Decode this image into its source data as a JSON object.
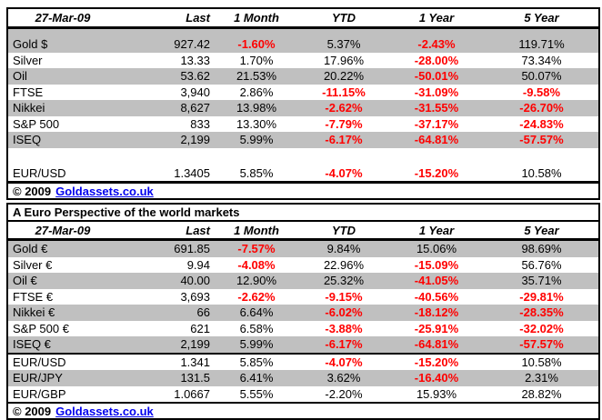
{
  "colors": {
    "negative_red": "#ff0000",
    "stripe_gray": "#c0c0c0",
    "link_blue": "#0000ee"
  },
  "chart_data": [
    {
      "type": "table",
      "columns": [
        "27-Mar-09",
        "Last",
        "1 Month",
        "YTD",
        "1 Year",
        "5 Year"
      ],
      "rows": [
        {
          "cells": [
            "Gold $",
            "927.42",
            "-1.60%",
            "5.37%",
            "-2.43%",
            "119.71%"
          ],
          "red": [
            2,
            4
          ]
        },
        {
          "cells": [
            "Silver",
            "13.33",
            "1.70%",
            "17.96%",
            "-28.00%",
            "73.34%"
          ],
          "red": [
            4
          ]
        },
        {
          "cells": [
            "Oil",
            "53.62",
            "21.53%",
            "20.22%",
            "-50.01%",
            "50.07%"
          ],
          "red": [
            4
          ]
        },
        {
          "cells": [
            "FTSE",
            "3,940",
            "2.86%",
            "-11.15%",
            "-31.09%",
            "-9.58%"
          ],
          "red": [
            3,
            4,
            5
          ]
        },
        {
          "cells": [
            "Nikkei",
            "8,627",
            "13.98%",
            "-2.62%",
            "-31.55%",
            "-26.70%"
          ],
          "red": [
            3,
            4,
            5
          ]
        },
        {
          "cells": [
            "S&P 500",
            "833",
            "13.30%",
            "-7.79%",
            "-37.17%",
            "-24.83%"
          ],
          "red": [
            3,
            4,
            5
          ]
        },
        {
          "cells": [
            "ISEQ",
            "2,199",
            "5.99%",
            "-6.17%",
            "-64.81%",
            "-57.57%"
          ],
          "red": [
            3,
            4,
            5
          ]
        },
        {
          "cells": [
            "EUR/USD",
            "1.3405",
            "5.85%",
            "-4.07%",
            "-15.20%",
            "10.58%"
          ],
          "red": [
            3,
            4
          ]
        }
      ],
      "footer": {
        "copyright": "© 2009",
        "link": "Goldassets.co.uk"
      }
    },
    {
      "type": "table",
      "title": "A Euro Perspective of the world markets",
      "columns": [
        "27-Mar-09",
        "Last",
        "1 Month",
        "YTD",
        "1 Year",
        "5 Year"
      ],
      "rows": [
        {
          "cells": [
            "Gold €",
            "691.85",
            "-7.57%",
            "9.84%",
            "15.06%",
            "98.69%"
          ],
          "red": [
            2
          ]
        },
        {
          "cells": [
            "Silver €",
            "9.94",
            "-4.08%",
            "22.96%",
            "-15.09%",
            "56.76%"
          ],
          "red": [
            2,
            4
          ]
        },
        {
          "cells": [
            "Oil €",
            "40.00",
            "12.90%",
            "25.32%",
            "-41.05%",
            "35.71%"
          ],
          "red": [
            4
          ]
        },
        {
          "cells": [
            "FTSE €",
            "3,693",
            "-2.62%",
            "-9.15%",
            "-40.56%",
            "-29.81%"
          ],
          "red": [
            2,
            3,
            4,
            5
          ]
        },
        {
          "cells": [
            "Nikkei €",
            "66",
            "6.64%",
            "-6.02%",
            "-18.12%",
            "-28.35%"
          ],
          "red": [
            3,
            4,
            5
          ]
        },
        {
          "cells": [
            "S&P 500 €",
            "621",
            "6.58%",
            "-3.88%",
            "-25.91%",
            "-32.02%"
          ],
          "red": [
            3,
            4,
            5
          ]
        },
        {
          "cells": [
            "ISEQ €",
            "2,199",
            "5.99%",
            "-6.17%",
            "-64.81%",
            "-57.57%"
          ],
          "red": [
            3,
            4,
            5
          ]
        },
        {
          "cells": [
            "EUR/USD",
            "1.341",
            "5.85%",
            "-4.07%",
            "-15.20%",
            "10.58%"
          ],
          "red": [
            3,
            4
          ]
        },
        {
          "cells": [
            "EUR/JPY",
            "131.5",
            "6.41%",
            "3.62%",
            "-16.40%",
            "2.31%"
          ],
          "red": [
            4
          ]
        },
        {
          "cells": [
            "EUR/GBP",
            "1.0667",
            "5.55%",
            "-2.20%",
            "15.93%",
            "28.82%"
          ],
          "red": []
        }
      ],
      "footer": {
        "copyright": "© 2009",
        "link": "Goldassets.co.uk"
      }
    }
  ]
}
